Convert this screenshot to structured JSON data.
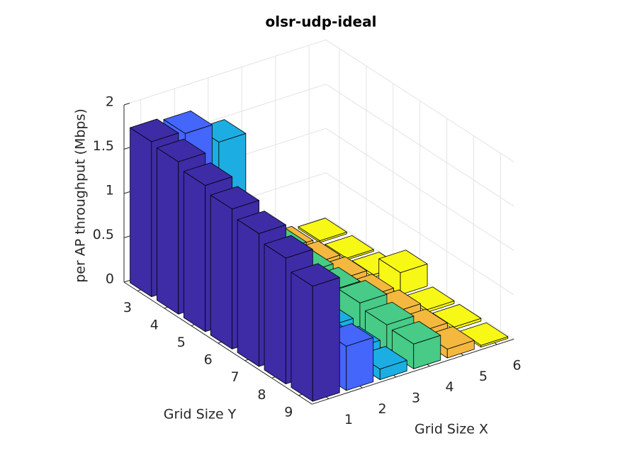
{
  "chart_data": {
    "type": "bar3",
    "title": "olsr-udp-ideal",
    "xlabel": "Grid Size X",
    "ylabel": "Grid Size Y",
    "zlabel": "per AP throughput (Mbps)",
    "x": [
      1,
      2,
      3,
      4,
      5,
      6
    ],
    "y": [
      3,
      4,
      5,
      6,
      7,
      8,
      9
    ],
    "colors": [
      "#3d2ca6",
      "#4466fb",
      "#1caee2",
      "#47cb87",
      "#f4b83f",
      "#f8f816"
    ],
    "values": [
      [
        1.75,
        1.72,
        1.5,
        0.3,
        0.05,
        0.02
      ],
      [
        1.72,
        1.0,
        0.6,
        0.35,
        0.08,
        0.02
      ],
      [
        1.65,
        0.8,
        0.4,
        0.3,
        0.1,
        0.03
      ],
      [
        1.58,
        0.6,
        0.3,
        0.3,
        0.1,
        0.25
      ],
      [
        1.5,
        0.5,
        0.2,
        0.35,
        0.12,
        0.03
      ],
      [
        1.42,
        0.4,
        0.15,
        0.3,
        0.1,
        0.03
      ],
      [
        1.3,
        0.5,
        0.12,
        0.28,
        0.1,
        0.02
      ]
    ],
    "xlim": [
      0.5,
      6.5
    ],
    "ylim": [
      2.5,
      9.5
    ],
    "zlim": [
      0,
      2
    ],
    "xticks": [
      1,
      2,
      3,
      4,
      5,
      6
    ],
    "yticks": [
      3,
      4,
      5,
      6,
      7,
      8,
      9
    ],
    "zticks": [
      0,
      0.5,
      1,
      1.5,
      2
    ],
    "grid": true
  }
}
